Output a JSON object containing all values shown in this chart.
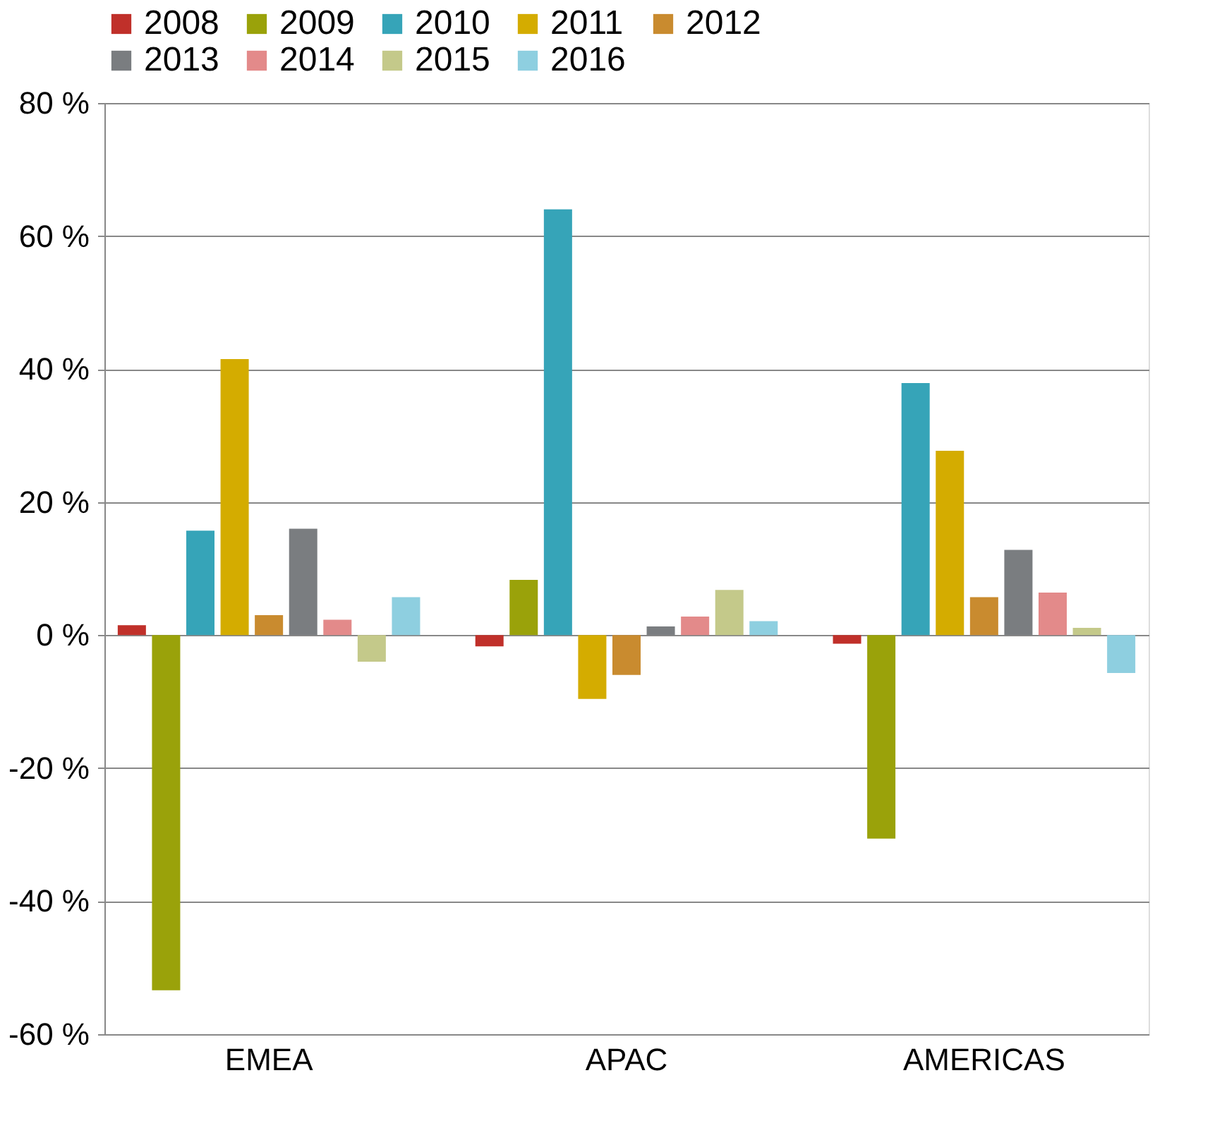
{
  "chart_data": {
    "type": "bar",
    "categories": [
      "EMEA",
      "APAC",
      "AMERICAS"
    ],
    "series": [
      {
        "name": "2008",
        "color": "#c0302a",
        "values": [
          1.5,
          -1.7,
          -1.3
        ]
      },
      {
        "name": "2009",
        "color": "#9aa20a",
        "values": [
          -53.4,
          8.3,
          -30.6
        ]
      },
      {
        "name": "2010",
        "color": "#36a4b8",
        "values": [
          15.7,
          64,
          37.9
        ]
      },
      {
        "name": "2011",
        "color": "#d4ac00",
        "values": [
          41.5,
          -9.6,
          27.7
        ]
      },
      {
        "name": "2012",
        "color": "#c98b2f",
        "values": [
          3.0,
          -6,
          5.7
        ]
      },
      {
        "name": "2013",
        "color": "#7a7d80",
        "values": [
          16,
          1.3,
          12.8
        ]
      },
      {
        "name": "2014",
        "color": "#e38a8a",
        "values": [
          2.3,
          2.8,
          6.4
        ]
      },
      {
        "name": "2015",
        "color": "#c4c98a",
        "values": [
          -4,
          6.8,
          1.1
        ]
      },
      {
        "name": "2016",
        "color": "#8ecfe0",
        "values": [
          5.7,
          2.1,
          -5.7
        ]
      }
    ],
    "ylim": [
      -60,
      80
    ],
    "yticks": [
      {
        "value": -60,
        "label": "-60 %"
      },
      {
        "value": -40,
        "label": "-40 %"
      },
      {
        "value": -20,
        "label": "-20 %"
      },
      {
        "value": 0,
        "label": "0 %"
      },
      {
        "value": 20,
        "label": "20 %"
      },
      {
        "value": 40,
        "label": "40 %"
      },
      {
        "value": 60,
        "label": "60 %"
      },
      {
        "value": 80,
        "label": "80 %"
      }
    ],
    "grid": "y",
    "legend": "top"
  }
}
